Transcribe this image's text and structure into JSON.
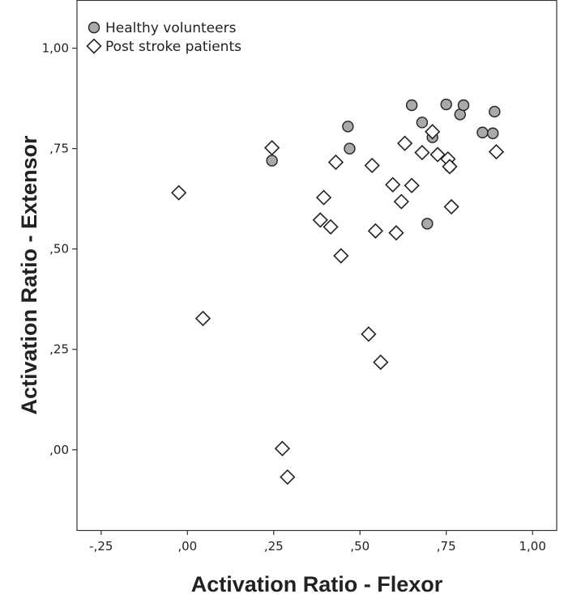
{
  "chart_data": {
    "type": "scatter",
    "xlabel": "Activation Ratio - Flexor",
    "ylabel": "Activation Ratio - Extensor",
    "xlim": [
      -0.32,
      1.07
    ],
    "ylim": [
      -0.2,
      1.12
    ],
    "x_ticks": [
      -0.25,
      0.0,
      0.25,
      0.5,
      0.75,
      1.0
    ],
    "x_tick_labels": [
      "-,25",
      ",00",
      ",25",
      ",50",
      ",75",
      "1,00"
    ],
    "y_ticks": [
      0.0,
      0.25,
      0.5,
      0.75,
      1.0
    ],
    "y_tick_labels": [
      ",00",
      ",25",
      ",50",
      ",75",
      "1,00"
    ],
    "grid": false,
    "legend_position": "top-left",
    "series": [
      {
        "name": "Healthy volunteers",
        "marker": "circle",
        "color": "#a9a9a9",
        "points": [
          [
            0.245,
            0.72
          ],
          [
            0.465,
            0.805
          ],
          [
            0.47,
            0.75
          ],
          [
            0.65,
            0.858
          ],
          [
            0.68,
            0.815
          ],
          [
            0.71,
            0.778
          ],
          [
            0.695,
            0.563
          ],
          [
            0.75,
            0.86
          ],
          [
            0.79,
            0.835
          ],
          [
            0.8,
            0.858
          ],
          [
            0.76,
            0.705
          ],
          [
            0.855,
            0.79
          ],
          [
            0.885,
            0.788
          ],
          [
            0.89,
            0.842
          ]
        ]
      },
      {
        "name": "Post stroke patients",
        "marker": "diamond",
        "color": "#ffffff",
        "points": [
          [
            -0.025,
            0.64
          ],
          [
            0.045,
            0.327
          ],
          [
            0.245,
            0.752
          ],
          [
            0.275,
            0.003
          ],
          [
            0.29,
            -0.068
          ],
          [
            0.385,
            0.572
          ],
          [
            0.395,
            0.628
          ],
          [
            0.415,
            0.555
          ],
          [
            0.43,
            0.716
          ],
          [
            0.445,
            0.483
          ],
          [
            0.525,
            0.288
          ],
          [
            0.535,
            0.708
          ],
          [
            0.545,
            0.545
          ],
          [
            0.56,
            0.218
          ],
          [
            0.595,
            0.66
          ],
          [
            0.605,
            0.54
          ],
          [
            0.62,
            0.618
          ],
          [
            0.63,
            0.763
          ],
          [
            0.65,
            0.658
          ],
          [
            0.68,
            0.74
          ],
          [
            0.71,
            0.792
          ],
          [
            0.725,
            0.735
          ],
          [
            0.755,
            0.724
          ],
          [
            0.76,
            0.705
          ],
          [
            0.765,
            0.605
          ],
          [
            0.895,
            0.742
          ]
        ]
      }
    ]
  }
}
